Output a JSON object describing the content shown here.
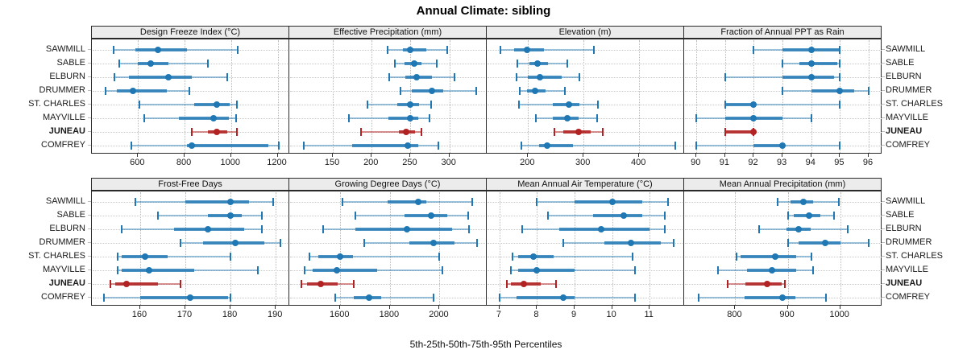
{
  "title": "Annual Climate: sibling",
  "caption": "5th-25th-50th-75th-95th Percentiles",
  "stations": [
    "SAWMILL",
    "SABLE",
    "ELBURN",
    "DRUMMER",
    "ST. CHARLES",
    "MAYVILLE",
    "JUNEAU",
    "COMFREY"
  ],
  "highlight_station": "JUNEAU",
  "colors": {
    "series": "#1f77b4",
    "series_thick": "rgba(31,119,180,0.8)",
    "series_thin": "rgba(31,119,180,0.45)",
    "highlight": "#b22222",
    "highlight_thick": "rgba(178,34,34,0.85)",
    "highlight_thin": "rgba(178,34,34,0.5)",
    "strip_bg": "#ececec",
    "grid": "#c6c6c6"
  },
  "chart_data": {
    "type": "dotplot",
    "subtype": "percentile-whisker (5th-25th-50th-75th-95th)",
    "legend_position": "none",
    "grid": "dotted",
    "categories": [
      "SAWMILL",
      "SABLE",
      "ELBURN",
      "DRUMMER",
      "ST. CHARLES",
      "MAYVILLE",
      "JUNEAU",
      "COMFREY"
    ],
    "panels": [
      {
        "title": "Design Freeze Index (°C)",
        "row": 0,
        "col": 0,
        "xlim": [
          405,
          1250
        ],
        "ticks": [
          600,
          800,
          1000,
          1200
        ],
        "values": [
          [
            495,
            590,
            685,
            810,
            1030
          ],
          [
            520,
            600,
            655,
            730,
            900
          ],
          [
            500,
            560,
            730,
            830,
            985
          ],
          [
            460,
            510,
            577,
            725,
            820
          ],
          [
            605,
            840,
            940,
            995,
            1025
          ],
          [
            625,
            775,
            925,
            990,
            1020
          ],
          [
            830,
            900,
            940,
            985,
            1025
          ],
          [
            570,
            810,
            830,
            1160,
            1205
          ]
        ]
      },
      {
        "title": "Effective Precipitation (mm)",
        "row": 0,
        "col": 1,
        "xlim": [
          95,
          348
        ],
        "ticks": [
          150,
          200,
          250,
          300
        ],
        "values": [
          [
            220,
            240,
            250,
            270,
            297
          ],
          [
            230,
            242,
            255,
            264,
            284
          ],
          [
            223,
            243,
            258,
            278,
            307
          ],
          [
            237,
            252,
            277,
            292,
            335
          ],
          [
            195,
            233,
            249,
            261,
            276
          ],
          [
            171,
            222,
            249,
            260,
            274
          ],
          [
            186,
            235,
            244,
            256,
            264
          ],
          [
            113,
            175,
            246,
            260,
            286
          ]
        ]
      },
      {
        "title": "Elevation (m)",
        "row": 0,
        "col": 2,
        "xlim": [
          127,
          481
        ],
        "ticks": [
          200,
          300,
          400
        ],
        "values": [
          [
            150,
            175,
            198,
            228,
            319
          ],
          [
            180,
            203,
            217,
            236,
            271
          ],
          [
            179,
            200,
            221,
            261,
            292
          ],
          [
            185,
            198,
            212,
            231,
            266
          ],
          [
            184,
            244,
            274,
            293,
            326
          ],
          [
            214,
            244,
            271,
            291,
            325
          ],
          [
            247,
            263,
            291,
            313,
            335
          ],
          [
            188,
            220,
            234,
            281,
            465
          ]
        ]
      },
      {
        "title": "Fraction of Annual PPT as Rain",
        "row": 0,
        "col": 3,
        "xlim": [
          89.6,
          96.45
        ],
        "ticks": [
          90,
          91,
          92,
          93,
          94,
          95,
          96
        ],
        "values": [
          [
            92,
            93,
            94,
            95,
            95
          ],
          [
            93,
            93.6,
            94,
            94.9,
            95
          ],
          [
            91,
            93,
            94,
            94.8,
            95
          ],
          [
            93,
            94,
            95,
            95.5,
            96
          ],
          [
            91,
            91,
            92,
            92,
            95
          ],
          [
            90,
            91,
            92,
            93,
            94
          ],
          [
            91,
            91,
            92,
            92,
            92
          ],
          [
            90,
            92,
            93,
            93,
            95
          ]
        ]
      },
      {
        "title": "Frost-Free Days",
        "row": 1,
        "col": 0,
        "xlim": [
          149.5,
          193
        ],
        "ticks": [
          160,
          170,
          180,
          190
        ],
        "values": [
          [
            159,
            170,
            180,
            184,
            189.5
          ],
          [
            164,
            175,
            180,
            182.5,
            187
          ],
          [
            156,
            167.5,
            175,
            183,
            187
          ],
          [
            169,
            174,
            181,
            187.5,
            191
          ],
          [
            155,
            156,
            161,
            166,
            180
          ],
          [
            155,
            156,
            162,
            172,
            186
          ],
          [
            153.5,
            154.5,
            157,
            164,
            169
          ],
          [
            152,
            160,
            171,
            179.5,
            180
          ]
        ]
      },
      {
        "title": "Growing Degree Days (°C)",
        "row": 1,
        "col": 1,
        "xlim": [
          1398,
          2190
        ],
        "ticks": [
          1600,
          1800,
          2000
        ],
        "values": [
          [
            1610,
            1790,
            1915,
            1945,
            2130
          ],
          [
            1660,
            1860,
            1965,
            2030,
            2115
          ],
          [
            1530,
            1660,
            1870,
            2050,
            2120
          ],
          [
            1695,
            1880,
            1975,
            2060,
            2150
          ],
          [
            1475,
            1510,
            1600,
            1650,
            2000
          ],
          [
            1455,
            1490,
            1585,
            1750,
            2010
          ],
          [
            1445,
            1465,
            1520,
            1590,
            1655
          ],
          [
            1580,
            1655,
            1715,
            1765,
            1975
          ]
        ]
      },
      {
        "title": "Mean Annual Air Temperature (°C)",
        "row": 1,
        "col": 2,
        "xlim": [
          6.68,
          11.92
        ],
        "ticks": [
          7,
          8,
          9,
          10,
          11
        ],
        "values": [
          [
            8.0,
            9.0,
            10.0,
            10.8,
            11.5
          ],
          [
            8.3,
            9.5,
            10.3,
            10.8,
            11.4
          ],
          [
            7.6,
            8.6,
            9.7,
            11.0,
            11.4
          ],
          [
            8.7,
            9.8,
            10.5,
            11.3,
            11.65
          ],
          [
            7.35,
            7.5,
            7.9,
            8.45,
            10.55
          ],
          [
            7.3,
            7.5,
            8.0,
            9.0,
            10.6
          ],
          [
            7.2,
            7.3,
            7.65,
            8.1,
            8.5
          ],
          [
            7.0,
            7.45,
            8.7,
            9.0,
            10.6
          ]
        ]
      },
      {
        "title": "Mean Annual Precipitation (mm)",
        "row": 1,
        "col": 3,
        "xlim": [
          704,
          1079
        ],
        "ticks": [
          800,
          900,
          1000
        ],
        "values": [
          [
            880,
            905,
            930,
            948,
            997
          ],
          [
            900,
            912,
            941,
            962,
            988
          ],
          [
            845,
            897,
            920,
            944,
            1015
          ],
          [
            900,
            920,
            971,
            1000,
            1055
          ],
          [
            803,
            810,
            876,
            916,
            946
          ],
          [
            767,
            823,
            870,
            916,
            948
          ],
          [
            785,
            820,
            860,
            888,
            895
          ],
          [
            730,
            818,
            890,
            915,
            973
          ]
        ]
      }
    ]
  }
}
